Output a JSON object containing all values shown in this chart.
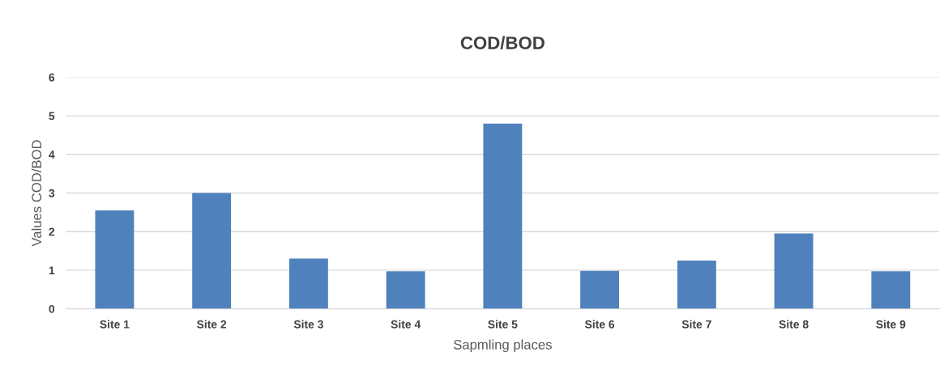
{
  "chart_data": {
    "type": "bar",
    "title": "COD/BOD",
    "xlabel": "Sapmling places",
    "ylabel": "Values COD/BOD",
    "categories": [
      "Site 1",
      "Site 2",
      "Site 3",
      "Site 4",
      "Site 5",
      "Site 6",
      "Site 7",
      "Site 8",
      "Site 9"
    ],
    "values": [
      2.55,
      3.0,
      1.3,
      0.97,
      4.8,
      0.98,
      1.25,
      1.95,
      0.97
    ],
    "color": "#4f81bd",
    "ylim": [
      0,
      6
    ],
    "yticks": [
      0,
      1,
      2,
      3,
      4,
      5,
      6
    ],
    "grid": "y",
    "legend": false
  }
}
